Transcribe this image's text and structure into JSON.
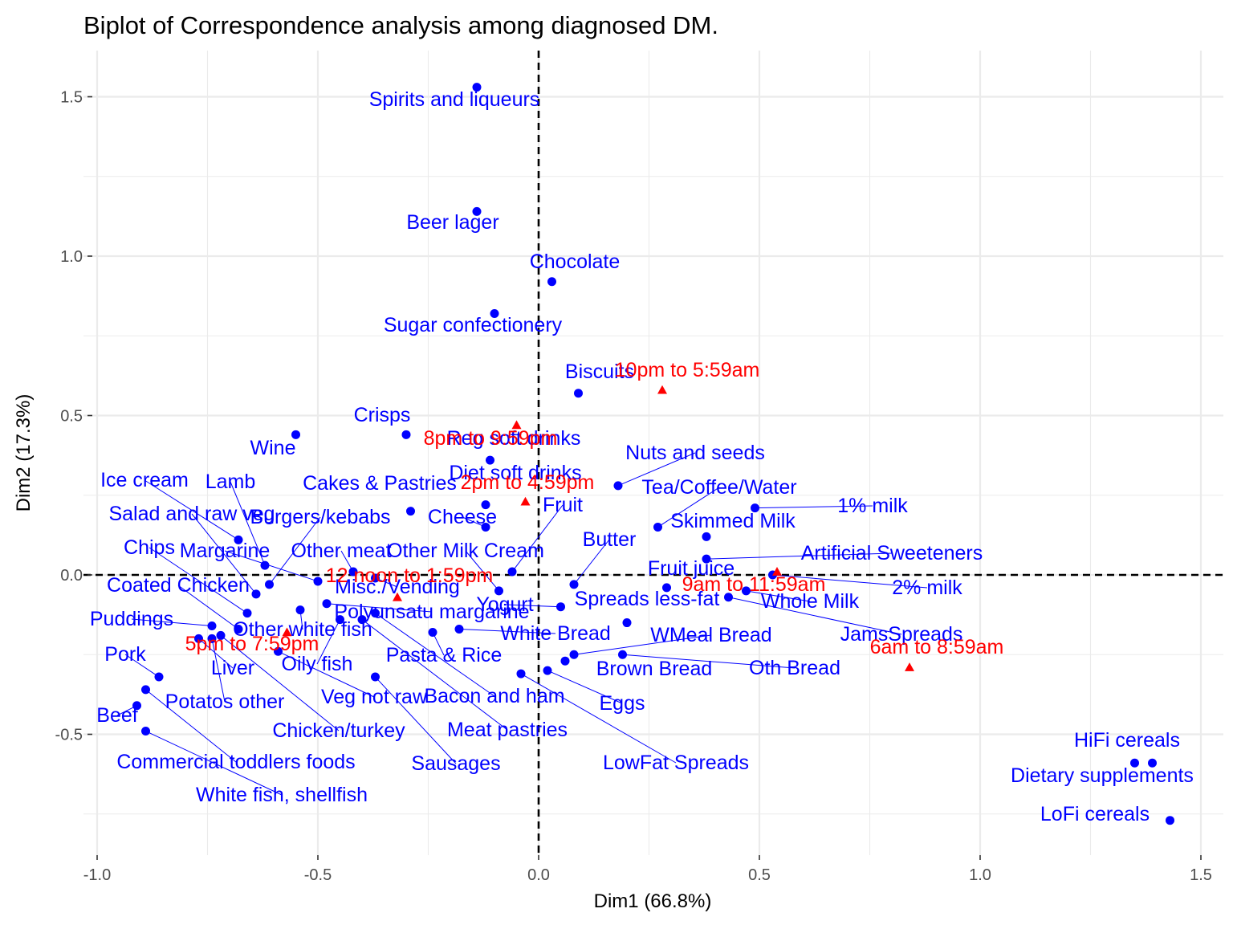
{
  "chart_data": {
    "type": "scatter",
    "title": "Biplot of Correspondence analysis among diagnosed DM.",
    "xlabel": "Dim1 (66.8%)",
    "ylabel": "Dim2 (17.3%)",
    "xlim": [
      -1.0,
      1.5
    ],
    "ylim": [
      -0.75,
      1.55
    ],
    "xticks": [
      -1.0,
      -0.5,
      0.0,
      0.5,
      1.0,
      1.5
    ],
    "xtick_labels": [
      "-1.0",
      "-0.5",
      "0.0",
      "0.5",
      "1.0",
      "1.5"
    ],
    "yticks": [
      -0.5,
      0.0,
      0.5,
      1.0,
      1.5
    ],
    "ytick_labels": [
      "-0.5",
      "0.0",
      "0.5",
      "1.0",
      "1.5"
    ],
    "grid": true,
    "reference_lines": "dashed at x=0 and y=0",
    "colors": {
      "food": "#0000ff",
      "time": "#ff0000"
    },
    "series": [
      {
        "kind": "food",
        "marker": "circle",
        "points": [
          {
            "label": "Spirits and liqueurs",
            "x": -0.14,
            "y": 1.53
          },
          {
            "label": "Beer lager",
            "x": -0.14,
            "y": 1.14
          },
          {
            "label": "Chocolate",
            "x": 0.03,
            "y": 0.92
          },
          {
            "label": "Sugar confectionery",
            "x": -0.1,
            "y": 0.82
          },
          {
            "label": "Biscuits",
            "x": 0.09,
            "y": 0.57
          },
          {
            "label": "Crisps",
            "x": -0.3,
            "y": 0.44
          },
          {
            "label": "Wine",
            "x": -0.55,
            "y": 0.44
          },
          {
            "label": "Reg soft drinks",
            "x": -0.11,
            "y": 0.36
          },
          {
            "label": "Diet soft drinks",
            "x": -0.12,
            "y": 0.22
          },
          {
            "label": "Nuts and seeds",
            "x": 0.18,
            "y": 0.28
          },
          {
            "label": "Tea/Coffee/Water",
            "x": 0.27,
            "y": 0.15
          },
          {
            "label": "1% milk",
            "x": 0.49,
            "y": 0.21
          },
          {
            "label": "Skimmed Milk",
            "x": 0.38,
            "y": 0.12
          },
          {
            "label": "Artificial Sweeteners",
            "x": 0.38,
            "y": 0.05
          },
          {
            "label": "2% milk",
            "x": 0.53,
            "y": 0.0
          },
          {
            "label": "Fruit juice",
            "x": 0.29,
            "y": -0.04
          },
          {
            "label": "Whole Milk",
            "x": 0.47,
            "y": -0.05
          },
          {
            "label": "JamsSpreads",
            "x": 0.43,
            "y": -0.07
          },
          {
            "label": "Cakes & Pastries",
            "x": -0.29,
            "y": 0.2
          },
          {
            "label": "Cheese",
            "x": -0.12,
            "y": 0.15
          },
          {
            "label": "Fruit",
            "x": -0.06,
            "y": 0.01
          },
          {
            "label": "Butter",
            "x": 0.08,
            "y": -0.03
          },
          {
            "label": "Other Milk Cream",
            "x": -0.09,
            "y": -0.05
          },
          {
            "label": "Ice cream",
            "x": -0.68,
            "y": 0.11
          },
          {
            "label": "Lamb",
            "x": -0.62,
            "y": 0.03
          },
          {
            "label": "Salad and raw veg",
            "x": -0.64,
            "y": -0.06
          },
          {
            "label": "Burgers/kebabs",
            "x": -0.61,
            "y": -0.03
          },
          {
            "label": "Other meat",
            "x": -0.42,
            "y": 0.01
          },
          {
            "label": "Misc./Vending",
            "x": -0.37,
            "y": -0.01
          },
          {
            "label": "Margarine",
            "x": -0.5,
            "y": -0.02
          },
          {
            "label": "Polyunsatu margarine",
            "x": -0.48,
            "y": -0.09
          },
          {
            "label": "Chips",
            "x": -0.66,
            "y": -0.12
          },
          {
            "label": "Coated Chicken",
            "x": -0.68,
            "y": -0.17
          },
          {
            "label": "Other white fish",
            "x": -0.54,
            "y": -0.11
          },
          {
            "label": "Yogurt",
            "x": 0.05,
            "y": -0.1
          },
          {
            "label": "Spreads less-fat",
            "x": 0.2,
            "y": -0.15
          },
          {
            "label": "White Bread",
            "x": -0.18,
            "y": -0.17
          },
          {
            "label": "WMeal Bread",
            "x": 0.08,
            "y": -0.25
          },
          {
            "label": "Oth Bread",
            "x": 0.19,
            "y": -0.25
          },
          {
            "label": "Brown Bread",
            "x": 0.06,
            "y": -0.27
          },
          {
            "label": "Puddings",
            "x": -0.74,
            "y": -0.16
          },
          {
            "label": "Pork",
            "x": -0.86,
            "y": -0.32
          },
          {
            "label": "Liver",
            "x": -0.77,
            "y": -0.2
          },
          {
            "label": "Oily fish",
            "x": -0.45,
            "y": -0.14
          },
          {
            "label": "Pasta & Rice",
            "x": -0.24,
            "y": -0.18
          },
          {
            "label": "Eggs",
            "x": 0.02,
            "y": -0.3
          },
          {
            "label": "Beef",
            "x": -0.91,
            "y": -0.41
          },
          {
            "label": "Potatos other",
            "x": -0.74,
            "y": -0.2
          },
          {
            "label": "Veg not raw",
            "x": -0.59,
            "y": -0.24
          },
          {
            "label": "Bacon and ham",
            "x": -0.37,
            "y": -0.12
          },
          {
            "label": "Chicken/turkey",
            "x": -0.72,
            "y": -0.19
          },
          {
            "label": "Meat pastries",
            "x": -0.4,
            "y": -0.14
          },
          {
            "label": "Commercial toddlers foods",
            "x": -0.89,
            "y": -0.36
          },
          {
            "label": "Sausages",
            "x": -0.37,
            "y": -0.32
          },
          {
            "label": "LowFat Spreads",
            "x": -0.04,
            "y": -0.31
          },
          {
            "label": "White fish, shellfish",
            "x": -0.89,
            "y": -0.49
          },
          {
            "label": "HiFi cereals",
            "x": 1.39,
            "y": -0.59
          },
          {
            "label": "Dietary supplements",
            "x": 1.35,
            "y": -0.59
          },
          {
            "label": "LoFi cereals",
            "x": 1.43,
            "y": -0.77
          }
        ]
      },
      {
        "kind": "time",
        "marker": "triangle",
        "points": [
          {
            "label": "10pm to 5:59am",
            "x": 0.28,
            "y": 0.58
          },
          {
            "label": "8pm to 9:59pm",
            "x": -0.05,
            "y": 0.47
          },
          {
            "label": "2pm to 4:59pm",
            "x": -0.03,
            "y": 0.23
          },
          {
            "label": "12 noon to 1:59pm",
            "x": -0.32,
            "y": -0.07
          },
          {
            "label": "9am to 11:59am",
            "x": 0.54,
            "y": 0.01
          },
          {
            "label": "5pm to 7:59pm",
            "x": -0.57,
            "y": -0.18
          },
          {
            "label": "6am to 8:59am",
            "x": 0.84,
            "y": -0.29
          }
        ]
      }
    ]
  }
}
